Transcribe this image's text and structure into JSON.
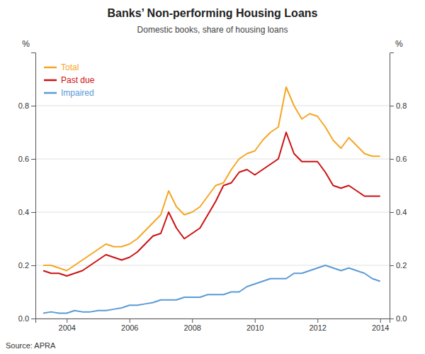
{
  "chart_data": {
    "type": "line",
    "title": "Banks’ Non-performing Housing Loans",
    "subtitle": "Domestic books, share of housing loans",
    "source": "Source: APRA",
    "ylabel": "%",
    "y2label": "%",
    "xlim": [
      2003.0,
      2014.3
    ],
    "xticks": [
      2004,
      2006,
      2008,
      2010,
      2012,
      2014
    ],
    "ylim": [
      0.0,
      1.0
    ],
    "yticks": [
      {
        "value": 0.0,
        "label": "0.0"
      },
      0.2,
      0.4,
      0.6,
      0.8
    ],
    "y2lim": [
      0.0,
      1.0
    ],
    "y2ticks": [
      {
        "value": 0.0,
        "label": "0.0"
      },
      0.2,
      0.4,
      0.6,
      0.8
    ],
    "grid": true,
    "legend": "upper left",
    "x": [
      2003.25,
      2003.5,
      2003.75,
      2004.0,
      2004.25,
      2004.5,
      2004.75,
      2005.0,
      2005.25,
      2005.5,
      2005.75,
      2006.0,
      2006.25,
      2006.5,
      2006.75,
      2007.0,
      2007.25,
      2007.5,
      2007.75,
      2008.0,
      2008.25,
      2008.5,
      2008.75,
      2009.0,
      2009.25,
      2009.5,
      2009.75,
      2010.0,
      2010.25,
      2010.5,
      2010.75,
      2011.0,
      2011.25,
      2011.5,
      2011.75,
      2012.0,
      2012.25,
      2012.5,
      2012.75,
      2013.0,
      2013.25,
      2013.5,
      2013.75,
      2014.0
    ],
    "series": [
      {
        "name": "Total",
        "color": "#f5a623",
        "values": [
          0.2,
          0.2,
          0.19,
          0.18,
          0.2,
          0.22,
          0.24,
          0.26,
          0.28,
          0.27,
          0.27,
          0.28,
          0.3,
          0.33,
          0.36,
          0.39,
          0.48,
          0.42,
          0.39,
          0.4,
          0.42,
          0.46,
          0.5,
          0.51,
          0.56,
          0.6,
          0.62,
          0.63,
          0.67,
          0.7,
          0.72,
          0.87,
          0.8,
          0.75,
          0.77,
          0.76,
          0.72,
          0.67,
          0.64,
          0.68,
          0.65,
          0.62,
          0.61,
          0.61
        ]
      },
      {
        "name": "Past due",
        "color": "#cc1111",
        "values": [
          0.18,
          0.17,
          0.17,
          0.16,
          0.17,
          0.18,
          0.2,
          0.22,
          0.24,
          0.23,
          0.22,
          0.23,
          0.25,
          0.28,
          0.31,
          0.32,
          0.4,
          0.34,
          0.3,
          0.32,
          0.34,
          0.39,
          0.44,
          0.5,
          0.51,
          0.55,
          0.56,
          0.54,
          0.56,
          0.58,
          0.6,
          0.7,
          0.62,
          0.59,
          0.59,
          0.59,
          0.55,
          0.5,
          0.49,
          0.5,
          0.48,
          0.46,
          0.46,
          0.46
        ]
      },
      {
        "name": "Impaired",
        "color": "#5b9bd5",
        "values": [
          0.02,
          0.025,
          0.02,
          0.02,
          0.03,
          0.025,
          0.025,
          0.03,
          0.03,
          0.035,
          0.04,
          0.05,
          0.05,
          0.055,
          0.06,
          0.07,
          0.07,
          0.07,
          0.08,
          0.08,
          0.08,
          0.09,
          0.09,
          0.09,
          0.1,
          0.1,
          0.12,
          0.13,
          0.14,
          0.15,
          0.15,
          0.15,
          0.17,
          0.17,
          0.18,
          0.19,
          0.2,
          0.19,
          0.18,
          0.19,
          0.18,
          0.17,
          0.15,
          0.14
        ]
      }
    ]
  }
}
